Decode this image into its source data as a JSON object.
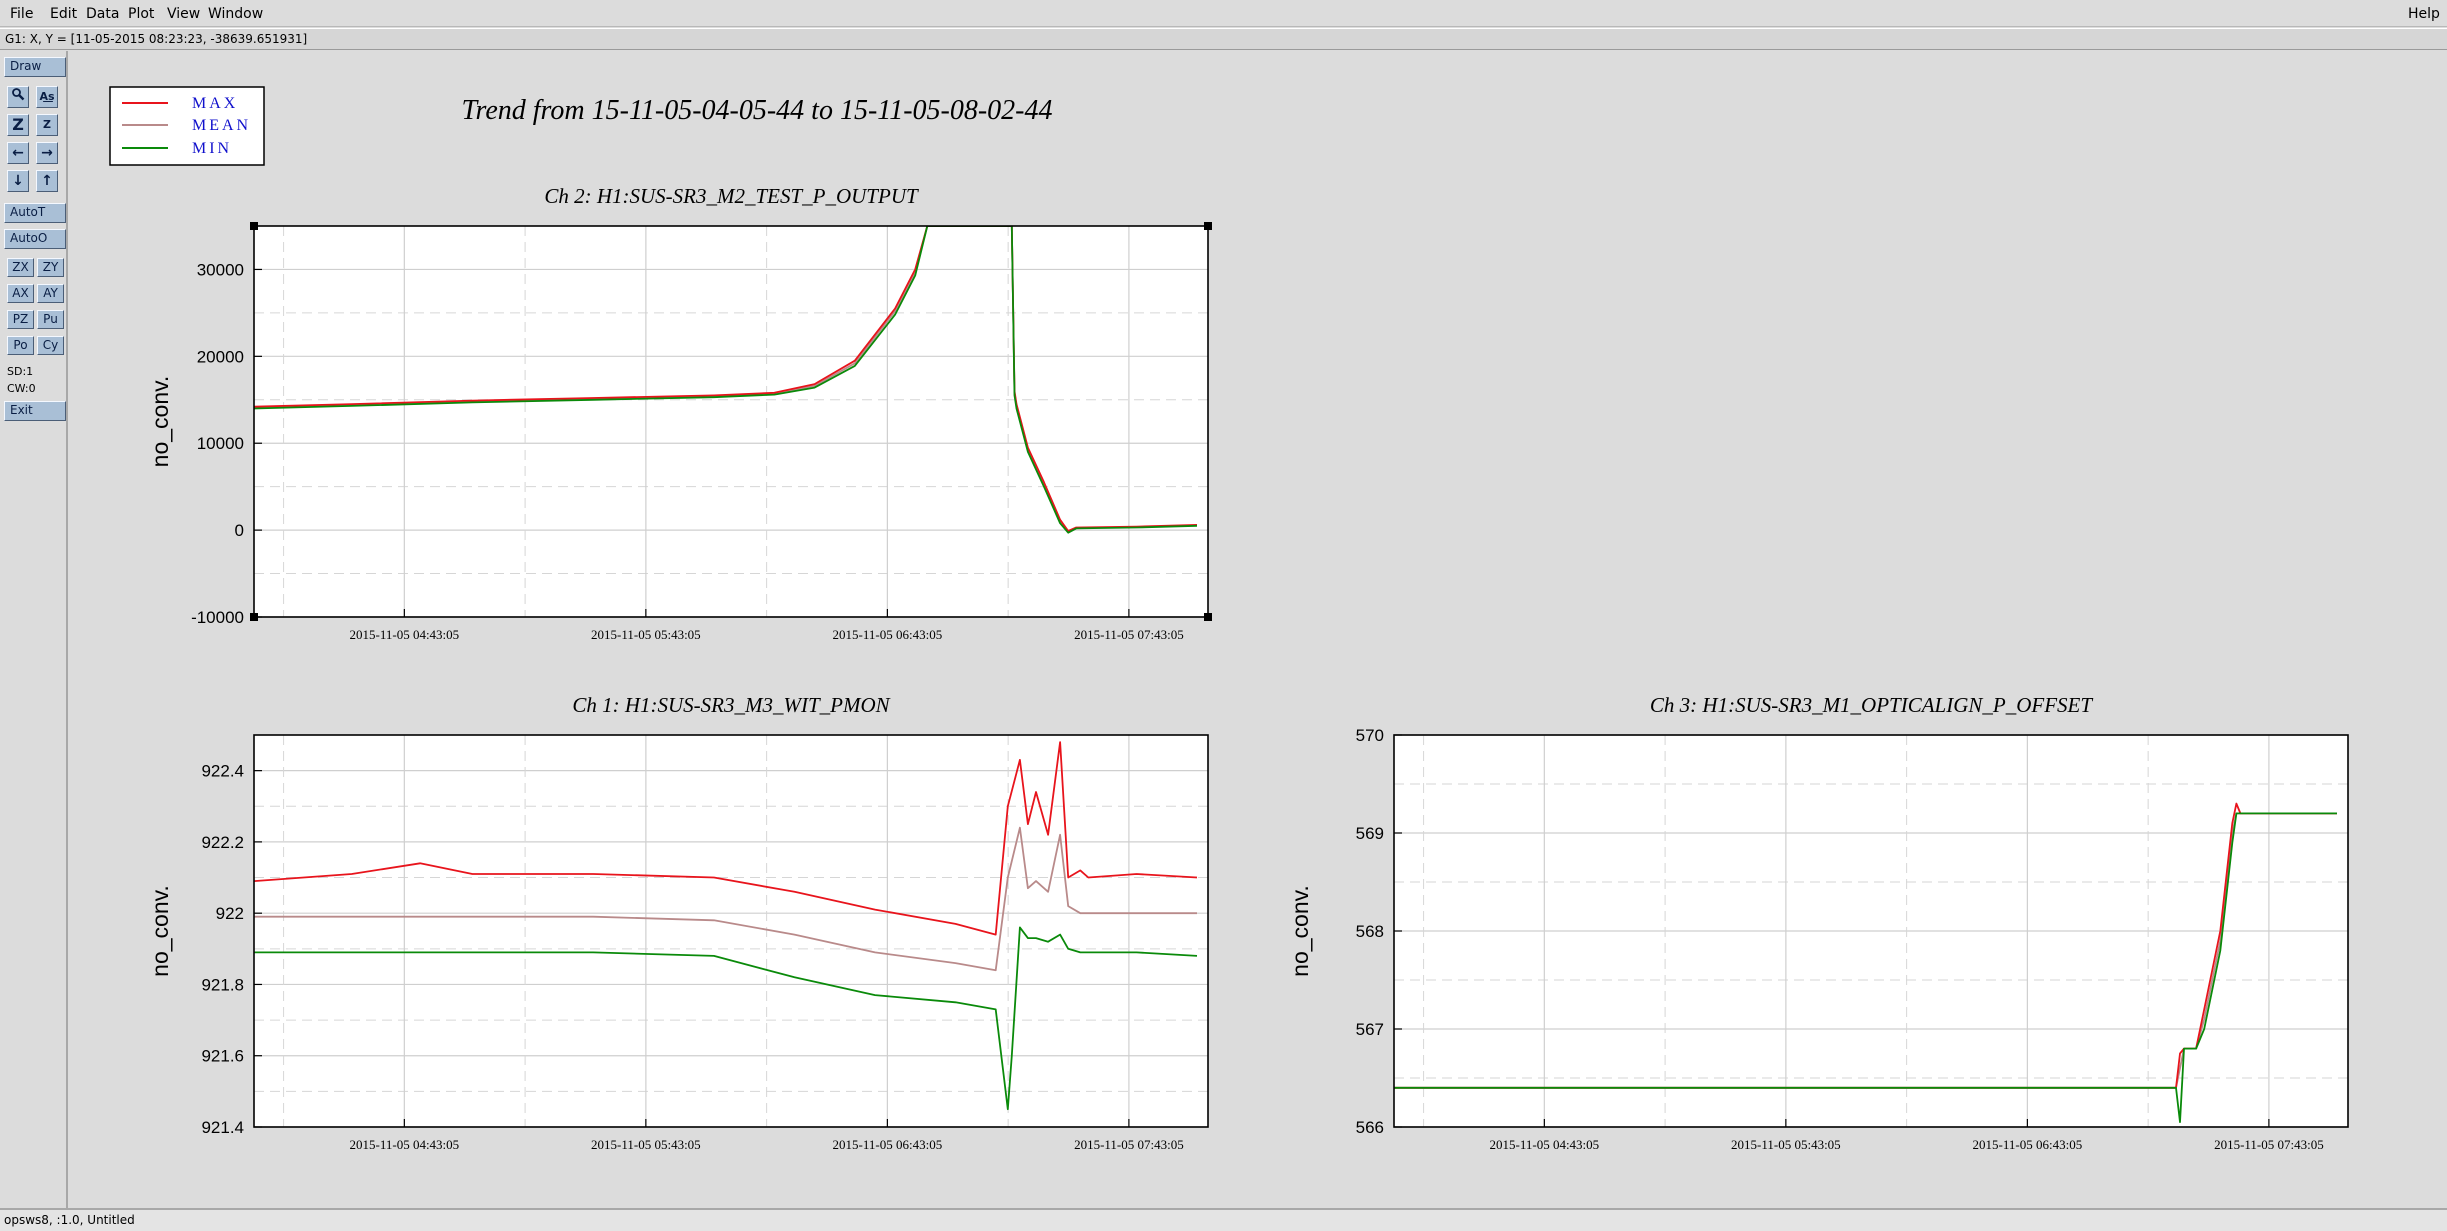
{
  "menu": {
    "items": [
      "File",
      "Edit",
      "Data",
      "Plot",
      "View",
      "Window"
    ],
    "help": "Help"
  },
  "coord_readout": "G1: X, Y = [11-05-2015 08:23:23, -38639.651931]",
  "toolbar": {
    "draw": "Draw",
    "autot": "AutoT",
    "autoo": "AutoO",
    "zx": "ZX",
    "zy": "ZY",
    "ax": "AX",
    "ay": "AY",
    "pz": "PZ",
    "pu": "Pu",
    "po": "Po",
    "cy": "Cy",
    "sd": "SD:1",
    "cw": "CW:0",
    "exit": "Exit"
  },
  "status": "opsws8, :1.0, Untitled",
  "main_title": "Trend from 15-11-05-04-05-44 to 15-11-05-08-02-44",
  "legend": [
    {
      "name": "MAX",
      "color": "#e8141c"
    },
    {
      "name": "MEAN",
      "color": "#b98a8a"
    },
    {
      "name": "MIN",
      "color": "#0a8a0a"
    }
  ],
  "colors": {
    "max": "#e8141c",
    "mean": "#b98a8a",
    "min": "#0a8a0a",
    "legend_text": "#1010cc"
  },
  "chart_data": [
    {
      "id": "ch2",
      "type": "line",
      "title": "Ch 2: H1:SUS-SR3_M2_TEST_P_OUTPUT",
      "ylabel": "no_conv.",
      "xlim": [
        "2015-11-05 04:05:44",
        "2015-11-05 08:02:44"
      ],
      "ylim": [
        -10000,
        35000
      ],
      "yticks": [
        -10000,
        0,
        10000,
        20000,
        30000
      ],
      "ytick_labels": [
        "-10000",
        "0",
        "10000",
        "20000",
        "30000"
      ],
      "xticks": [
        "2015-11-05 04:43:05",
        "2015-11-05 05:43:05",
        "2015-11-05 06:43:05",
        "2015-11-05 07:43:05"
      ],
      "grid": true,
      "selected": true,
      "series": [
        {
          "name": "MAX",
          "x": [
            "2015-11-05 04:05:44",
            "2015-11-05 04:30:00",
            "2015-11-05 05:00:00",
            "2015-11-05 05:30:00",
            "2015-11-05 06:00:00",
            "2015-11-05 06:15:00",
            "2015-11-05 06:25:00",
            "2015-11-05 06:35:00",
            "2015-11-05 06:45:00",
            "2015-11-05 06:50:00",
            "2015-11-05 06:53:00",
            "2015-11-05 07:14:00",
            "2015-11-05 07:14:40",
            "2015-11-05 07:15:10",
            "2015-11-05 07:18:00",
            "2015-11-05 07:22:00",
            "2015-11-05 07:26:00",
            "2015-11-05 07:28:00",
            "2015-11-05 07:30:00",
            "2015-11-05 07:45:00",
            "2015-11-05 08:00:00"
          ],
          "y": [
            14200,
            14500,
            14900,
            15200,
            15500,
            15800,
            16800,
            19500,
            25500,
            30000,
            35000,
            35000,
            16000,
            14500,
            9500,
            5500,
            1200,
            -100,
            300,
            400,
            600
          ]
        },
        {
          "name": "MEAN",
          "x": [
            "2015-11-05 04:05:44",
            "2015-11-05 04:30:00",
            "2015-11-05 05:00:00",
            "2015-11-05 05:30:00",
            "2015-11-05 06:00:00",
            "2015-11-05 06:15:00",
            "2015-11-05 06:25:00",
            "2015-11-05 06:35:00",
            "2015-11-05 06:45:00",
            "2015-11-05 06:50:00",
            "2015-11-05 06:53:00",
            "2015-11-05 07:14:00",
            "2015-11-05 07:14:40",
            "2015-11-05 07:15:10",
            "2015-11-05 07:18:00",
            "2015-11-05 07:22:00",
            "2015-11-05 07:26:00",
            "2015-11-05 07:28:00",
            "2015-11-05 07:30:00",
            "2015-11-05 07:45:00",
            "2015-11-05 08:00:00"
          ],
          "y": [
            14100,
            14400,
            14800,
            15100,
            15400,
            15700,
            16600,
            19200,
            25200,
            29700,
            35000,
            35000,
            15800,
            14300,
            9300,
            5300,
            1000,
            -200,
            250,
            350,
            550
          ]
        },
        {
          "name": "MIN",
          "x": [
            "2015-11-05 04:05:44",
            "2015-11-05 04:30:00",
            "2015-11-05 05:00:00",
            "2015-11-05 05:30:00",
            "2015-11-05 06:00:00",
            "2015-11-05 06:15:00",
            "2015-11-05 06:25:00",
            "2015-11-05 06:35:00",
            "2015-11-05 06:45:00",
            "2015-11-05 06:50:00",
            "2015-11-05 06:53:00",
            "2015-11-05 07:14:00",
            "2015-11-05 07:14:40",
            "2015-11-05 07:15:10",
            "2015-11-05 07:18:00",
            "2015-11-05 07:22:00",
            "2015-11-05 07:26:00",
            "2015-11-05 07:28:00",
            "2015-11-05 07:30:00",
            "2015-11-05 07:45:00",
            "2015-11-05 08:00:00"
          ],
          "y": [
            14000,
            14300,
            14700,
            15000,
            15300,
            15600,
            16400,
            18900,
            24800,
            29300,
            35000,
            35000,
            15500,
            14000,
            9000,
            5000,
            800,
            -300,
            200,
            300,
            500
          ]
        }
      ]
    },
    {
      "id": "ch1",
      "type": "line",
      "title": "Ch 1: H1:SUS-SR3_M3_WIT_PMON",
      "ylabel": "no_conv.",
      "xlim": [
        "2015-11-05 04:05:44",
        "2015-11-05 08:02:44"
      ],
      "ylim": [
        921.4,
        922.5
      ],
      "yticks": [
        921.4,
        921.6,
        921.8,
        922.0,
        922.2,
        922.4
      ],
      "ytick_labels": [
        "921.4",
        "921.6",
        "921.8",
        "922",
        "922.2",
        "922.4"
      ],
      "xticks": [
        "2015-11-05 04:43:05",
        "2015-11-05 05:43:05",
        "2015-11-05 06:43:05",
        "2015-11-05 07:43:05"
      ],
      "grid": true,
      "selected": false,
      "series": [
        {
          "name": "MAX",
          "x": [
            "2015-11-05 04:05:44",
            "2015-11-05 04:30:00",
            "2015-11-05 04:47:00",
            "2015-11-05 05:00:00",
            "2015-11-05 05:30:00",
            "2015-11-05 06:00:00",
            "2015-11-05 06:20:00",
            "2015-11-05 06:40:00",
            "2015-11-05 07:00:00",
            "2015-11-05 07:10:00",
            "2015-11-05 07:13:00",
            "2015-11-05 07:16:00",
            "2015-11-05 07:18:00",
            "2015-11-05 07:20:00",
            "2015-11-05 07:23:00",
            "2015-11-05 07:26:00",
            "2015-11-05 07:28:00",
            "2015-11-05 07:31:00",
            "2015-11-05 07:33:00",
            "2015-11-05 07:45:00",
            "2015-11-05 08:00:00"
          ],
          "y": [
            922.09,
            922.11,
            922.14,
            922.11,
            922.11,
            922.1,
            922.06,
            922.01,
            921.97,
            921.94,
            922.3,
            922.43,
            922.25,
            922.34,
            922.22,
            922.48,
            922.1,
            922.12,
            922.1,
            922.11,
            922.1
          ]
        },
        {
          "name": "MEAN",
          "x": [
            "2015-11-05 04:05:44",
            "2015-11-05 04:30:00",
            "2015-11-05 05:00:00",
            "2015-11-05 05:30:00",
            "2015-11-05 06:00:00",
            "2015-11-05 06:20:00",
            "2015-11-05 06:40:00",
            "2015-11-05 07:00:00",
            "2015-11-05 07:10:00",
            "2015-11-05 07:13:00",
            "2015-11-05 07:16:00",
            "2015-11-05 07:18:00",
            "2015-11-05 07:20:00",
            "2015-11-05 07:23:00",
            "2015-11-05 07:26:00",
            "2015-11-05 07:28:00",
            "2015-11-05 07:31:00",
            "2015-11-05 07:45:00",
            "2015-11-05 08:00:00"
          ],
          "y": [
            921.99,
            921.99,
            921.99,
            921.99,
            921.98,
            921.94,
            921.89,
            921.86,
            921.84,
            922.1,
            922.24,
            922.07,
            922.09,
            922.06,
            922.22,
            922.02,
            922.0,
            922.0,
            922.0
          ]
        },
        {
          "name": "MIN",
          "x": [
            "2015-11-05 04:05:44",
            "2015-11-05 04:30:00",
            "2015-11-05 05:00:00",
            "2015-11-05 05:30:00",
            "2015-11-05 06:00:00",
            "2015-11-05 06:20:00",
            "2015-11-05 06:40:00",
            "2015-11-05 07:00:00",
            "2015-11-05 07:10:00",
            "2015-11-05 07:13:00",
            "2015-11-05 07:14:00",
            "2015-11-05 07:16:00",
            "2015-11-05 07:18:00",
            "2015-11-05 07:20:00",
            "2015-11-05 07:23:00",
            "2015-11-05 07:26:00",
            "2015-11-05 07:28:00",
            "2015-11-05 07:31:00",
            "2015-11-05 07:45:00",
            "2015-11-05 08:00:00"
          ],
          "y": [
            921.89,
            921.89,
            921.89,
            921.89,
            921.88,
            921.82,
            921.77,
            921.75,
            921.73,
            921.45,
            921.6,
            921.96,
            921.93,
            921.93,
            921.92,
            921.94,
            921.9,
            921.89,
            921.89,
            921.88
          ]
        }
      ]
    },
    {
      "id": "ch3",
      "type": "line",
      "title": "Ch 3: H1:SUS-SR3_M1_OPTICALIGN_P_OFFSET",
      "ylabel": "no_conv.",
      "xlim": [
        "2015-11-05 04:05:44",
        "2015-11-05 08:02:44"
      ],
      "ylim": [
        566,
        570
      ],
      "yticks": [
        566,
        567,
        568,
        569,
        570
      ],
      "ytick_labels": [
        "566",
        "567",
        "568",
        "569",
        "570"
      ],
      "xticks": [
        "2015-11-05 04:43:05",
        "2015-11-05 05:43:05",
        "2015-11-05 06:43:05",
        "2015-11-05 07:43:05"
      ],
      "grid": true,
      "selected": false,
      "series": [
        {
          "name": "MAX",
          "x": [
            "2015-11-05 04:05:44",
            "2015-11-05 07:20:00",
            "2015-11-05 07:21:00",
            "2015-11-05 07:22:00",
            "2015-11-05 07:25:00",
            "2015-11-05 07:27:00",
            "2015-11-05 07:31:00",
            "2015-11-05 07:34:00",
            "2015-11-05 07:35:00",
            "2015-11-05 07:36:00",
            "2015-11-05 08:00:00"
          ],
          "y": [
            566.4,
            566.4,
            566.75,
            566.8,
            566.8,
            567.2,
            568.0,
            569.1,
            569.3,
            569.2,
            569.2
          ]
        },
        {
          "name": "MEAN",
          "x": [
            "2015-11-05 04:05:44",
            "2015-11-05 07:20:00",
            "2015-11-05 07:21:00",
            "2015-11-05 07:22:00",
            "2015-11-05 07:25:00",
            "2015-11-05 07:27:00",
            "2015-11-05 07:31:00",
            "2015-11-05 07:34:00",
            "2015-11-05 07:35:00",
            "2015-11-05 08:00:00"
          ],
          "y": [
            566.4,
            566.4,
            566.6,
            566.8,
            566.8,
            567.1,
            567.9,
            569.0,
            569.2,
            569.2
          ]
        },
        {
          "name": "MIN",
          "x": [
            "2015-11-05 04:05:44",
            "2015-11-05 07:20:00",
            "2015-11-05 07:21:00",
            "2015-11-05 07:22:00",
            "2015-11-05 07:25:00",
            "2015-11-05 07:27:00",
            "2015-11-05 07:31:00",
            "2015-11-05 07:34:00",
            "2015-11-05 07:35:00",
            "2015-11-05 08:00:00"
          ],
          "y": [
            566.4,
            566.4,
            566.05,
            566.8,
            566.8,
            567.0,
            567.8,
            568.9,
            569.2,
            569.2
          ]
        }
      ]
    }
  ]
}
